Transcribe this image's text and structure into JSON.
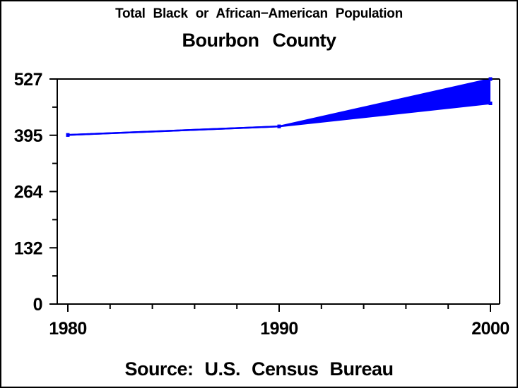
{
  "chart": {
    "title_line1": "Total Black or African−American Population",
    "title_line2": "Bourbon County",
    "footnote": "Source: U.S. Census Bureau"
  },
  "chart_data": {
    "type": "area",
    "description": "Band (area fill) between an upper and lower population series; series coincide from 1980 to 1990, then diverge to 2000.",
    "x": [
      1980,
      1990,
      2000
    ],
    "series": [
      {
        "name": "upper",
        "values": [
          396,
          416,
          527
        ]
      },
      {
        "name": "lower",
        "values": [
          396,
          416,
          470
        ]
      }
    ],
    "x_ticks": [
      1980,
      1990,
      2000
    ],
    "x_tick_labels": [
      "1980",
      "1990",
      "2000"
    ],
    "x_minor_per_interval": 4,
    "y_tick_values": [
      0,
      131.75,
      263.5,
      395.25,
      527
    ],
    "y_tick_labels": [
      "0",
      "132",
      "264",
      "395",
      "527"
    ],
    "y_minor_per_interval": 1,
    "xlim": [
      1980,
      2000
    ],
    "ylim": [
      0,
      527
    ],
    "grid": "off",
    "legend": "none",
    "series_color": "#0000ff",
    "axis_color": "#000000",
    "background_color": "#ffffff",
    "marker": "filled-square"
  }
}
